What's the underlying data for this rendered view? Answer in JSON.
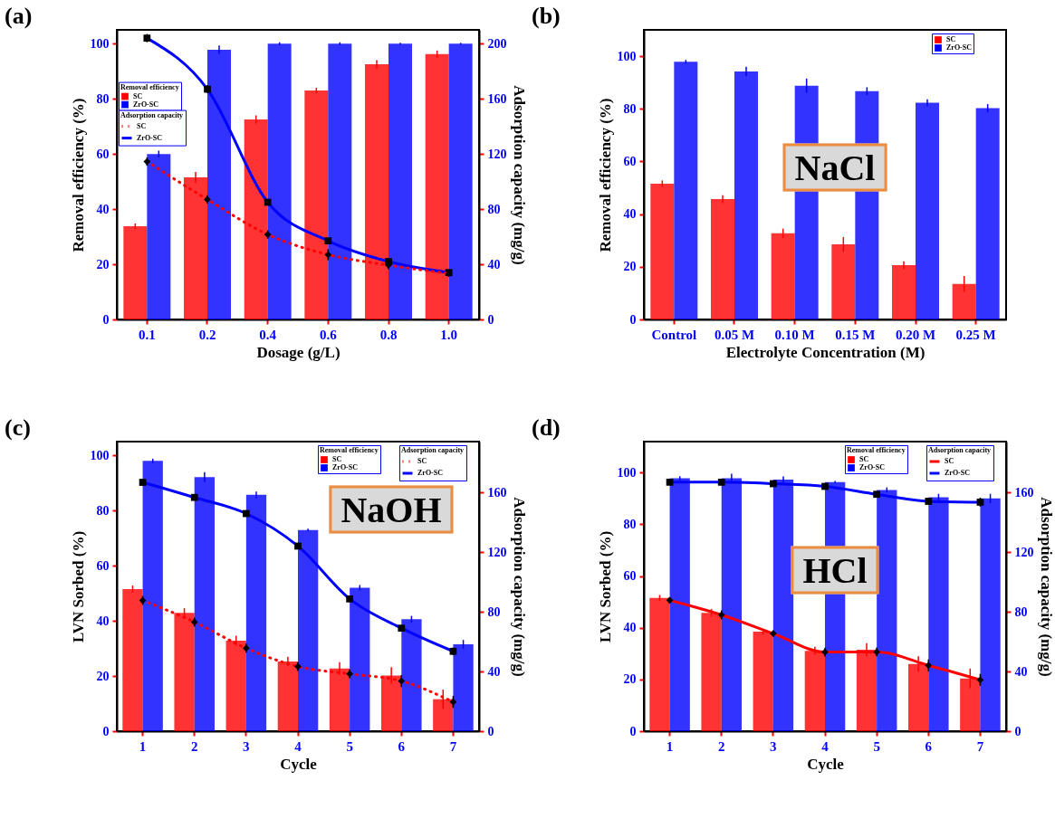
{
  "chart_data": [
    {
      "type": "bar",
      "title": "(a)",
      "xlabel": "Dosage (g/L)",
      "ylabel": "Removal efficiency (%)",
      "y2label": "Adsorption capacity (mg/g)",
      "legend_title": "Removal efficiency",
      "annotations": [
        "Adsorption capacity"
      ],
      "legend": "left",
      "categories": [
        "0.1",
        "0.2",
        "0.4",
        "0.6",
        "0.8",
        "1.0"
      ],
      "ylim": [
        0,
        105
      ],
      "yticks": [
        0,
        20,
        40,
        60,
        80,
        100
      ],
      "y2lim": [
        0,
        210
      ],
      "y2ticks": [
        0,
        40,
        80,
        120,
        160,
        200
      ],
      "series": [
        {
          "name": "SC",
          "color": "#ff0000",
          "values": [
            33.8,
            51.5,
            72.5,
            83,
            92.5,
            96.2
          ],
          "errors": [
            1,
            2,
            1.5,
            1,
            1.5,
            1.3
          ]
        },
        {
          "name": "ZrO-SC",
          "color": "#0000ff",
          "values": [
            60,
            97.8,
            100,
            100,
            100,
            100
          ],
          "errors": [
            1.2,
            1.5,
            0.5,
            0.5,
            0.3,
            0.3
          ]
        },
        {
          "type": "line",
          "axis": "y2",
          "name": "SC",
          "color": "#ff0000",
          "line_style": "dotted",
          "marker": "diamond",
          "values": [
            114.5,
            87,
            61.6,
            47,
            39.4,
            33.3
          ],
          "errors": [
            3,
            3,
            3,
            4,
            3,
            2
          ]
        },
        {
          "type": "line",
          "axis": "y2",
          "name": "ZrO-SC",
          "color": "#0000ff",
          "line_style": "solid",
          "marker": "square",
          "values": [
            204,
            167,
            85,
            57,
            42,
            34
          ],
          "errors": [
            3,
            3,
            2,
            2,
            1.5,
            1.5
          ]
        }
      ]
    },
    {
      "type": "bar",
      "title": "(b)",
      "xlabel": "Electrolyte Concentration (M)",
      "ylabel": "Removal efficiency (%)",
      "legend_title": null,
      "annotations": [
        "NaCl"
      ],
      "legend": "top right",
      "categories": [
        "Control",
        "0.05 M",
        "0.10 M",
        "0.15 M",
        "0.20 M",
        "0.25 M"
      ],
      "ylim": [
        0,
        110
      ],
      "yticks": [
        0,
        20,
        40,
        60,
        80,
        100
      ],
      "series": [
        {
          "name": "SC",
          "color": "#ff0000",
          "values": [
            51.6,
            45.7,
            32.7,
            28.5,
            20.6,
            13.5
          ],
          "errors": [
            1.2,
            1.5,
            1.8,
            2.8,
            1.5,
            3
          ]
        },
        {
          "name": "ZrO-SC",
          "color": "#0000ff",
          "values": [
            97.9,
            94.2,
            88.8,
            86.7,
            82.3,
            80.3
          ],
          "errors": [
            0.7,
            1.8,
            2.7,
            1.5,
            1.3,
            1.5
          ]
        }
      ]
    },
    {
      "type": "bar",
      "title": "(c)",
      "xlabel": "Cycle",
      "ylabel": "LVN Sorbed (%)",
      "y2label": "Adsorption capacity (mg/g)",
      "legend_title": "Removal efficiency",
      "annotations": [
        "Adsorption capacity",
        "NaOH"
      ],
      "legend": "top right",
      "categories": [
        "1",
        "2",
        "3",
        "4",
        "5",
        "6",
        "7"
      ],
      "ylim": [
        0,
        105
      ],
      "yticks": [
        0,
        20,
        40,
        60,
        80,
        100
      ],
      "y2lim": [
        0,
        194
      ],
      "y2ticks": [
        0,
        40,
        80,
        120,
        160
      ],
      "series": [
        {
          "name": "SC",
          "color": "#ff0000",
          "values": [
            51.5,
            42.9,
            32.8,
            25.3,
            22.7,
            20.2,
            11.6
          ],
          "errors": [
            1.3,
            1.7,
            1.8,
            1.7,
            2.3,
            3,
            3.5
          ]
        },
        {
          "name": "ZrO-SC",
          "color": "#0000ff",
          "values": [
            98,
            92.1,
            85.7,
            72.9,
            52,
            40.6,
            31.5
          ],
          "errors": [
            0.8,
            1.8,
            1.2,
            0.5,
            1,
            1.2,
            1.6
          ]
        },
        {
          "type": "line",
          "axis": "y2",
          "name": "SC",
          "color": "#ff0000",
          "line_style": "dotted",
          "marker": "diamond",
          "values": [
            87.6,
            73.1,
            55.6,
            43.3,
            38.4,
            33.6,
            19.6
          ],
          "errors": [
            3,
            3,
            3,
            3,
            3,
            4,
            4
          ]
        },
        {
          "type": "line",
          "axis": "y2",
          "name": "ZrO-SC",
          "color": "#0000ff",
          "line_style": "solid",
          "marker": "square",
          "values": [
            166.7,
            156.6,
            145.8,
            124,
            88.6,
            69,
            53.5
          ],
          "errors": [
            2,
            2,
            2,
            2,
            2,
            2,
            2.5
          ]
        }
      ]
    },
    {
      "type": "bar",
      "title": "(d)",
      "xlabel": "Cycle",
      "ylabel": "LVN Sorbed (%)",
      "y2label": "Adsorption capacity (mg/g)",
      "legend_title": "Removal efficiency",
      "annotations": [
        "Adsorption capacity",
        "HCl"
      ],
      "legend": "top right",
      "categories": [
        "1",
        "2",
        "3",
        "4",
        "5",
        "6",
        "7"
      ],
      "ylim": [
        0,
        112
      ],
      "yticks": [
        0,
        20,
        40,
        60,
        80,
        100
      ],
      "y2lim": [
        0,
        194
      ],
      "y2ticks": [
        0,
        40,
        80,
        120,
        160
      ],
      "series": [
        {
          "name": "SC",
          "color": "#ff0000",
          "values": [
            51.5,
            45.8,
            38.5,
            31.1,
            31.5,
            26,
            20.4
          ],
          "errors": [
            1.2,
            1.5,
            1,
            1.5,
            2.5,
            3,
            3.8
          ]
        },
        {
          "name": "ZrO-SC",
          "color": "#0000ff",
          "values": [
            97.8,
            97.8,
            97.3,
            96.3,
            93.3,
            90.5,
            90
          ],
          "errors": [
            0.8,
            1.8,
            1.2,
            0.5,
            1,
            1.3,
            1.8
          ]
        },
        {
          "type": "line",
          "axis": "y2",
          "name": "SC",
          "color": "#ff0000",
          "line_style": "solid",
          "marker": "diamond",
          "values": [
            87.7,
            77.9,
            65.4,
            53,
            53.1,
            44.1,
            34.4
          ],
          "errors": [
            2,
            3,
            2,
            3,
            3,
            4,
            4
          ]
        },
        {
          "type": "line",
          "axis": "y2",
          "name": "ZrO-SC",
          "color": "#0000ff",
          "line_style": "solid",
          "marker": "square",
          "values": [
            166.8,
            166.8,
            165.8,
            164,
            158.7,
            154,
            153.4
          ],
          "errors": [
            2,
            2,
            2,
            2,
            2,
            2,
            3
          ]
        }
      ]
    }
  ]
}
